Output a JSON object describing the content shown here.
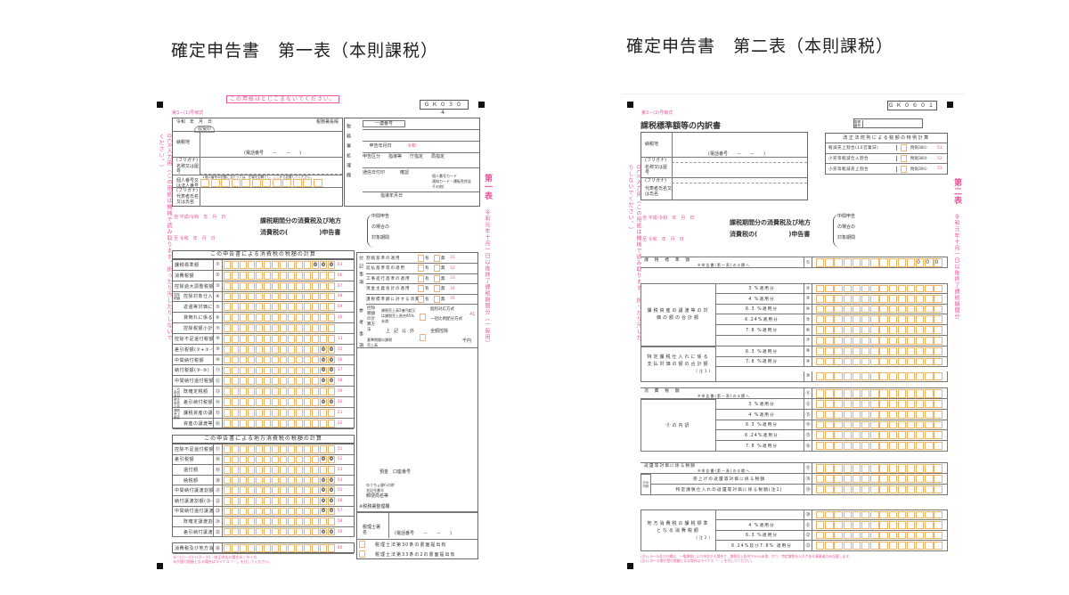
{
  "titles": {
    "left": "確定申告書　第一表（本則課税）",
    "right": "確定申告書　第二表（本則課税）"
  },
  "form1": {
    "notice": "この用紙はとじこまないでください。",
    "code": "ＧＫ０３０４",
    "form_no": "第3－(1)号様式",
    "date_label": "令和　年　月　日",
    "office_label": "税務署長殿",
    "stamp": "収受印",
    "address_label": "納税地",
    "phone": "(電話番号　　－　　－　　)",
    "furigana": "(フリガナ)",
    "name_label": "名称又は屋号",
    "mynumber_label": "個人番号又は法人番号",
    "mynumber_note": "↓個人番号の記載に当たっては、左端を空欄とし、ここから記載してください。",
    "rep_label": "代表者氏名又は氏名",
    "office_side": "税務署処理欄",
    "serial": "一連番号",
    "filing_date": "申告年月日",
    "filing_era": "令和",
    "filing_type": [
      "申告区分",
      "指導等",
      "庁指定",
      "局指定"
    ],
    "comm_date": "通信日付印",
    "confirm": "確認",
    "id_docs": [
      "個人番号カード",
      "通知カード・運転免許証",
      "その他("
    ],
    "guidance_date": "指導年月日",
    "period_from": "自 平成/令和　年　月　日",
    "period_to": "至 令和　年　月　日",
    "doc_title_1": "課税期間分の消費税及び地方",
    "doc_title_2": "消費税の(　　　　　)申告書",
    "interim_1": "中間申告",
    "interim_2": "の場合の",
    "interim_3": "対象期間",
    "side_title": "第一表",
    "side_note": "令和元年十月一日以後終了課税期間分（一般用）",
    "ocr_note": "OCR入力用（この用紙は機械で読み取ります。折ったり汚したりしないでください。）",
    "sec1_title": "この申告書による消費税の税額の計算",
    "sec1_rows": [
      {
        "label": "課税標準額",
        "num": "①",
        "fixed": "000",
        "code": "03"
      },
      {
        "label": "消費税額",
        "num": "②",
        "fixed": "",
        "code": "06"
      },
      {
        "label": "控除過大調整税額",
        "num": "③",
        "fixed": "",
        "code": "07"
      },
      {
        "label": "控除対象仕入税額",
        "num": "④",
        "fixed": "",
        "code": "08"
      },
      {
        "label": "返還等対価に係る税額",
        "num": "⑤",
        "fixed": "",
        "code": "09"
      },
      {
        "label": "貸倒れに係る税額",
        "num": "⑥",
        "fixed": "",
        "code": "10"
      },
      {
        "label": "控除税額小計(④+⑤+⑥)",
        "num": "⑦",
        "fixed": "",
        "code": ""
      },
      {
        "label": "控除不足還付税額(⑦-②-③)",
        "num": "⑧",
        "fixed": "",
        "code": "13"
      },
      {
        "label": "差引税額(②+③-⑦)",
        "num": "⑨",
        "fixed": "00",
        "code": "15"
      },
      {
        "label": "中間納付税額",
        "num": "⑩",
        "fixed": "00",
        "code": "16"
      },
      {
        "label": "納付税額(⑨-⑩)",
        "num": "⑪",
        "fixed": "00",
        "code": "17"
      },
      {
        "label": "中間納付還付税額(⑩-⑨)",
        "num": "⑫",
        "fixed": "00",
        "code": "18"
      },
      {
        "label": "既確定税額",
        "num": "⑬",
        "fixed": "",
        "code": "19"
      },
      {
        "label": "差引納付税額",
        "num": "⑭",
        "fixed": "00",
        "code": "20"
      },
      {
        "label": "課税資産の譲渡等の対価の額",
        "num": "⑮",
        "fixed": "",
        "code": "21"
      },
      {
        "label": "資産の譲渡等の対価の額",
        "num": "⑯",
        "fixed": "",
        "code": "22"
      }
    ],
    "sec1_groups": [
      "控除税額",
      "この申告書が修正申告である場合",
      "課税売上割合"
    ],
    "sec2_title": "この申告書による地方消費税の税額の計算",
    "sec2_rows": [
      {
        "label": "控除不足還付税額",
        "num": "⑰",
        "fixed": "",
        "code": "51"
      },
      {
        "label": "差引税額",
        "num": "⑱",
        "fixed": "00",
        "code": "52"
      },
      {
        "label": "還付額",
        "num": "⑲",
        "fixed": "",
        "code": "53"
      },
      {
        "label": "納税額",
        "num": "⑳",
        "fixed": "00",
        "code": "54"
      },
      {
        "label": "中間納付譲渡割額",
        "num": "㉑",
        "fixed": "00",
        "code": "55"
      },
      {
        "label": "納付譲渡割額(⑳-㉑)",
        "num": "㉒",
        "fixed": "00",
        "code": "56"
      },
      {
        "label": "中間納付還付譲渡割額(㉑-⑳)",
        "num": "㉓",
        "fixed": "00",
        "code": "57"
      },
      {
        "label": "既確定譲渡割額",
        "num": "㉔",
        "fixed": "",
        "code": "58"
      },
      {
        "label": "差引納付譲渡割額",
        "num": "㉕",
        "fixed": "00",
        "code": "59"
      }
    ],
    "total_row": {
      "label": "消費税及び地方消費税の合計(納付又は還付)税額",
      "num": "㉖",
      "fixed": "",
      "code": "60"
    },
    "notes": [
      "㉖＝(⑪－⑫)＋(㉒－㉓)・修正申告の場合㉖＝⑭＋㉕",
      "㉖が還付税額となる場合はマイナス「－」を付してください。"
    ],
    "appendix_title": "付記事項",
    "appendix": [
      {
        "label": "割賦基準の適用",
        "code": "31"
      },
      {
        "label": "延払基準等の適用",
        "code": "32"
      },
      {
        "label": "工事進行基準の適用",
        "code": "33"
      },
      {
        "label": "現金主義会計の適用",
        "code": "34"
      },
      {
        "label": "課税標準額に対する消費税額の計算の特例の適用",
        "code": "35"
      }
    ],
    "yes": "有",
    "no": "無",
    "reference_title": "参考事項",
    "deduction_method": "控除税額の計算方法",
    "method_cond": "課税売上高5億円超又は課税売上割合95%未満",
    "method_a": "個別対応方式",
    "method_b": "一括比例配分方式",
    "method_code": "41",
    "method_other": "上記以外",
    "method_full": "全額控除",
    "base_sales": "基準期間の課税売上高",
    "thousand_yen": "千円",
    "bank_labels": [
      "預金",
      "口座番号",
      "ゆうちょ銀行の貯金記号番号",
      "郵便局名等",
      "※税務署整理欄"
    ],
    "tax_acct": "税理士署名",
    "tax_acct_phone": "(電話番号　　－　　－　　)",
    "law30": "税理士法第30条の書面提出有",
    "law33": "税理士法第33条の2の書面提出有"
  },
  "form2": {
    "code": "ＧＫ０６０１",
    "form_no": "第3－(2)号様式",
    "doc_title": "課税標準額等の内訳書",
    "ref_no": "整理番号",
    "address_label": "納税地",
    "phone": "(電話番号　　－　　－　　)",
    "furigana": "(フリガナ)",
    "name_label": "名称又は屋号",
    "rep_label": "代表者氏名又は氏名",
    "special_title": "改正法附則による税額の特例計算",
    "special_rows": [
      {
        "label": "軽減売上割合(10営業日)",
        "ref": "附則38①",
        "code": "51"
      },
      {
        "label": "小売等軽減仕入割合",
        "ref": "附則38②",
        "code": "52"
      },
      {
        "label": "小売等軽減売上割合",
        "ref": "附則39①",
        "code": "53"
      }
    ],
    "period_from": "自 平成/令和　年　月　日",
    "period_to": "至 令和　年　月　日",
    "doc_title_1": "課税期間分の消費税及び地方",
    "doc_title_2": "消費税の(　　　　　)申告書",
    "interim_1": "中間申告",
    "interim_2": "の場合の",
    "interim_3": "対象期間",
    "side_title": "第二表",
    "side_note": "令和元年十月一日以後終了課税期間分",
    "ocr_note": "OCR入力用（この用紙は機械で読み取ります。折ったり汚したりしないでください。）",
    "tax_base": {
      "label": "課　税　標　準　額",
      "sub": "※申告書(第一表)の①欄へ",
      "num": "①",
      "fixed": "000"
    },
    "sales_group": "課税資産の譲渡等の対価の額の合計額",
    "sales_rows": [
      {
        "label": "3 %適用分",
        "num": "②"
      },
      {
        "label": "4 %適用分",
        "num": "③"
      },
      {
        "label": "6.3 %適用分",
        "num": "④"
      },
      {
        "label": "6.24%適用分",
        "num": "⑤"
      },
      {
        "label": "7.8 %適用分",
        "num": "⑥"
      },
      {
        "label": "",
        "num": "⑦"
      }
    ],
    "specified_group": "特定課税仕入れに係る支払対価の額の合計額",
    "specified_note": "(注1)",
    "specified_rows": [
      {
        "label": "6.3 %適用分",
        "num": "⑧"
      },
      {
        "label": "7.8 %適用分",
        "num": "⑨"
      },
      {
        "label": "",
        "num": "⑩"
      }
    ],
    "ctax": {
      "label": "消　費　税　額",
      "sub": "※申告書(第一表)の②欄へ",
      "num": "⑪"
    },
    "ctax_group": "⑪の内訳",
    "ctax_rows": [
      {
        "label": "3 %適用分",
        "num": "⑫"
      },
      {
        "label": "4 %適用分",
        "num": "⑬"
      },
      {
        "label": "6.3 %適用分",
        "num": "⑭"
      },
      {
        "label": "6.24%適用分",
        "num": "⑮"
      },
      {
        "label": "7.8 %適用分",
        "num": "⑯"
      }
    ],
    "refund": {
      "label": "返還等対価に係る税額",
      "sub": "※申告書(第一表)の⑤欄へ",
      "num": "⑰"
    },
    "refund_group": "⑰の内訳",
    "refund_rows": [
      {
        "label": "売上げの返還等対価に係る税額",
        "num": "⑱"
      },
      {
        "label": "特定課税仕入れの返還等対価に係る税額(注1)",
        "num": "⑲"
      }
    ],
    "local_group": "地方消費税の課税標準となる消費税額",
    "local_note": "(注2)",
    "local_rows": [
      {
        "label": "",
        "num": "⑳"
      },
      {
        "label": "4 %適用分",
        "num": "㉑"
      },
      {
        "label": "6.3 %適用分",
        "num": "㉒"
      },
      {
        "label": "6.24%及び7.8% 適用分",
        "num": "㉓"
      }
    ],
    "notes": [
      "(注1) ⑧～⑩及び⑲欄は、一般課税により申告する場合で、課税売上割合が95%未満、かつ、特定課税仕入れがある事業者のみ記載します。",
      "(注2) ⑳～㉓欄が還付税額となる場合はマイナス「－」を付してください。"
    ]
  },
  "colors": {
    "pink": "#e9559b",
    "orange_box": "#f2b463"
  }
}
